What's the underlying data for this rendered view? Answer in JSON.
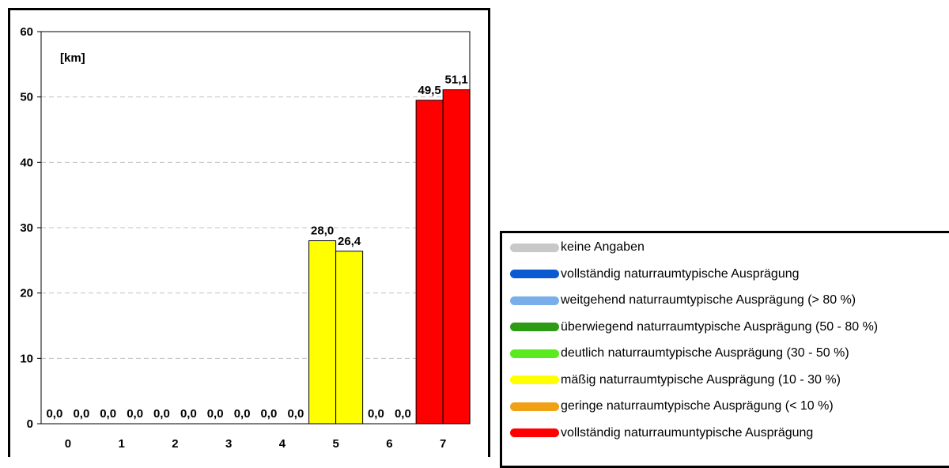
{
  "chart_data": {
    "type": "bar",
    "unit_label": "[km]",
    "categories": [
      "0",
      "1",
      "2",
      "3",
      "4",
      "5",
      "6",
      "7"
    ],
    "series": [
      {
        "values": [
          0.0,
          0.0,
          0.0,
          0.0,
          0.0,
          28.0,
          0.0,
          49.5
        ],
        "labels": [
          "0,0",
          "0,0",
          "0,0",
          "0,0",
          "0,0",
          "28,0",
          "0,0",
          "49,5"
        ]
      },
      {
        "values": [
          0.0,
          0.0,
          0.0,
          0.0,
          0.0,
          26.4,
          0.0,
          51.1
        ],
        "labels": [
          "0,0",
          "0,0",
          "0,0",
          "0,0",
          "0,0",
          "26,4",
          "0,0",
          "51,1"
        ]
      }
    ],
    "category_colors": [
      "#c8c8c8",
      "#0a5ad2",
      "#78afeb",
      "#2d9b14",
      "#5aeb1e",
      "#ffff00",
      "#f0a014",
      "#ff0000"
    ],
    "ylim": [
      0,
      60
    ],
    "yticks": [
      0,
      10,
      20,
      30,
      40,
      50,
      60
    ],
    "grid": "dashed-horizontal"
  },
  "legend": {
    "items": [
      {
        "label": "keine Angaben",
        "color": "#c8c8c8"
      },
      {
        "label": "vollständig naturraumtypische Ausprägung",
        "color": "#0a5ad2"
      },
      {
        "label": "weitgehend naturraumtypische Ausprägung (> 80 %)",
        "color": "#78afeb"
      },
      {
        "label": "überwiegend naturraumtypische Ausprägung (50 - 80 %)",
        "color": "#2d9b14"
      },
      {
        "label": "deutlich naturraumtypische Ausprägung (30 - 50 %)",
        "color": "#5aeb1e"
      },
      {
        "label": "mäßig naturraumtypische Ausprägung (10 - 30 %)",
        "color": "#ffff00"
      },
      {
        "label": "geringe naturraumtypische Ausprägung (< 10 %)",
        "color": "#f0a014"
      },
      {
        "label": "vollständig naturraumuntypische Ausprägung",
        "color": "#ff0000"
      }
    ]
  }
}
